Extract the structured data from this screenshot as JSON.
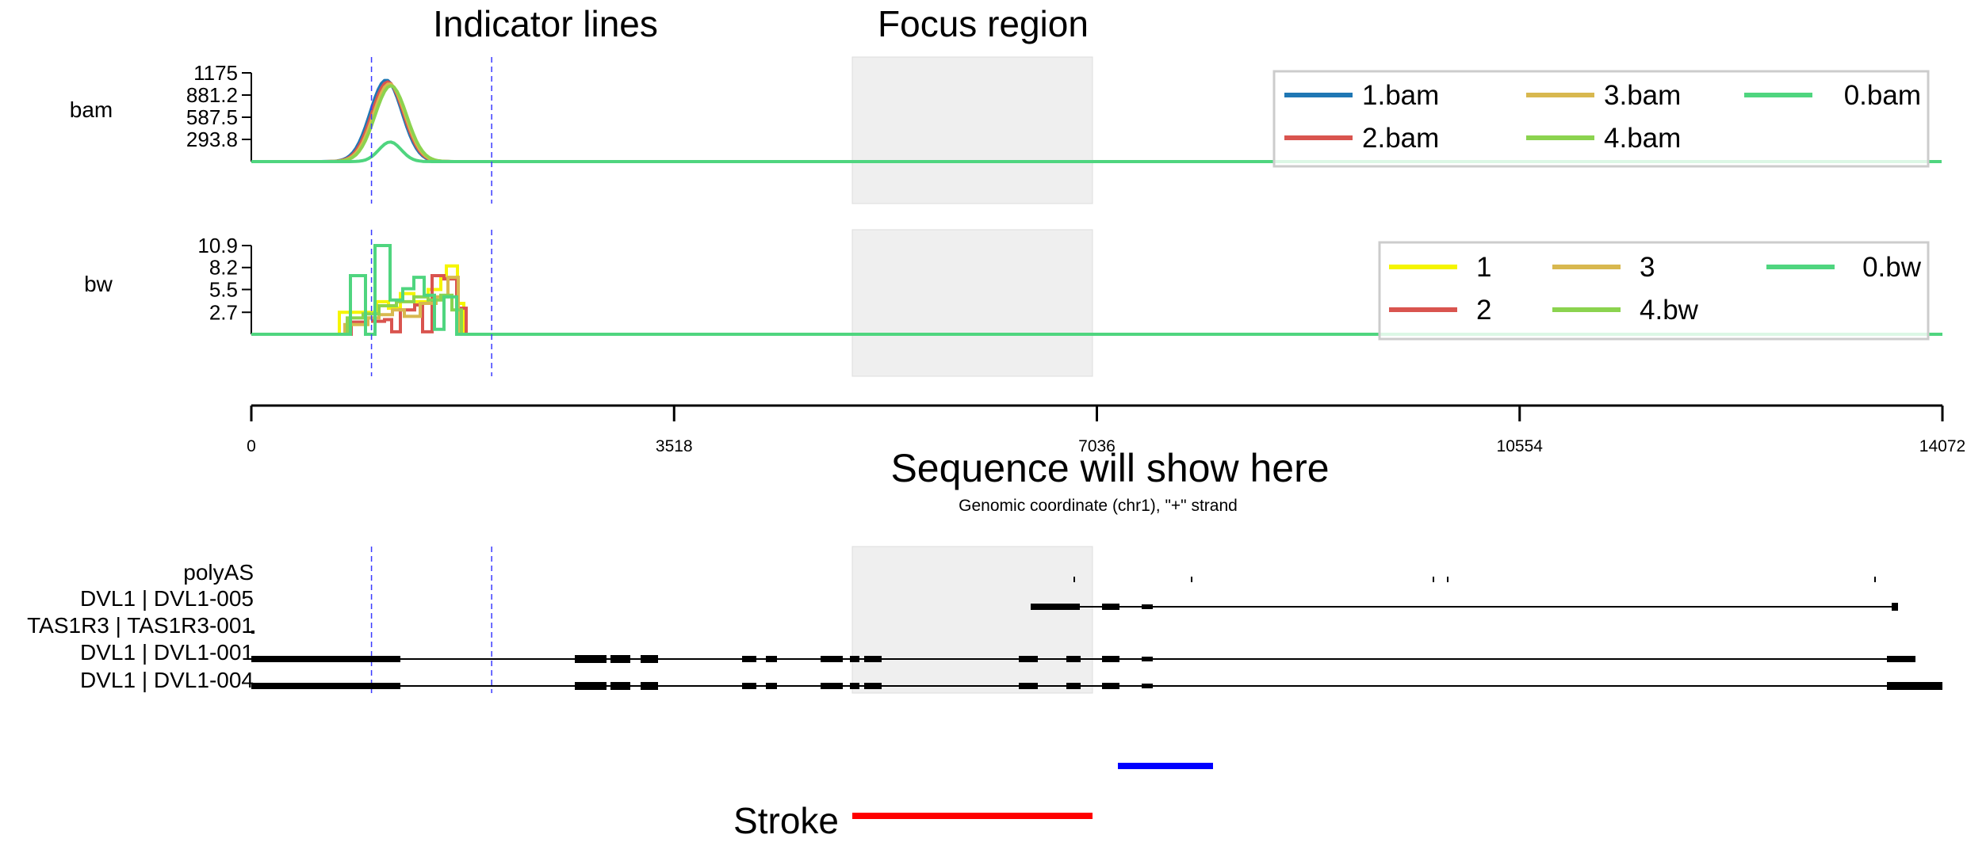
{
  "headings": {
    "indicator": "Indicator lines",
    "focus": "Focus region",
    "sequence": "Sequence will show here"
  },
  "coordinate_axis": {
    "ticks": [
      "0",
      "3518",
      "7036",
      "10554",
      "14072"
    ],
    "tick_values": [
      0,
      3518,
      7036,
      10554,
      14072
    ],
    "range": [
      0,
      14072
    ],
    "label": "Genomic coordinate (chr1), \"+\" strand"
  },
  "focus_region": [
    5000,
    7036
  ],
  "indicator_lines": [
    1000,
    2000
  ],
  "tracks": {
    "bam": {
      "label": "bam",
      "ticks": [
        "1175",
        "881.2",
        "587.5",
        "293.8"
      ],
      "tick_values": [
        1175,
        881.2,
        587.5,
        293.8
      ],
      "ymax": 1175,
      "legend": [
        {
          "name": "1.bam",
          "color": "#1f77b4"
        },
        {
          "name": "2.bam",
          "color": "#d9544f"
        },
        {
          "name": "3.bam",
          "color": "#d8b84f"
        },
        {
          "name": "4.bam",
          "color": "#8bd34f"
        },
        {
          "name": "0.bam",
          "color": "#4fd57f"
        }
      ]
    },
    "bw": {
      "label": "bw",
      "ticks": [
        "10.9",
        "8.2",
        "5.5",
        "2.7"
      ],
      "tick_values": [
        10.9,
        8.2,
        5.5,
        2.7
      ],
      "ymax": 10.9,
      "legend": [
        {
          "name": "1",
          "color": "#f5f500"
        },
        {
          "name": "2",
          "color": "#d9544f"
        },
        {
          "name": "3",
          "color": "#d8b84f"
        },
        {
          "name": "4.bw",
          "color": "#8bd34f"
        },
        {
          "name": "0.bw",
          "color": "#4fd57f"
        }
      ]
    }
  },
  "annotation_tracks": [
    {
      "label": "polyAS"
    },
    {
      "label": "DVL1 | DVL1-005"
    },
    {
      "label": "TAS1R3 | TAS1R3-001"
    },
    {
      "label": "DVL1 | DVL1-001"
    },
    {
      "label": "DVL1 | DVL1-004"
    }
  ],
  "stroke_label": "Stroke",
  "colors": {
    "indicator": "#3b3bff",
    "focus_fill": "#efefef",
    "stroke_red": "#ff0000",
    "blue_bar": "#0000ff"
  }
}
